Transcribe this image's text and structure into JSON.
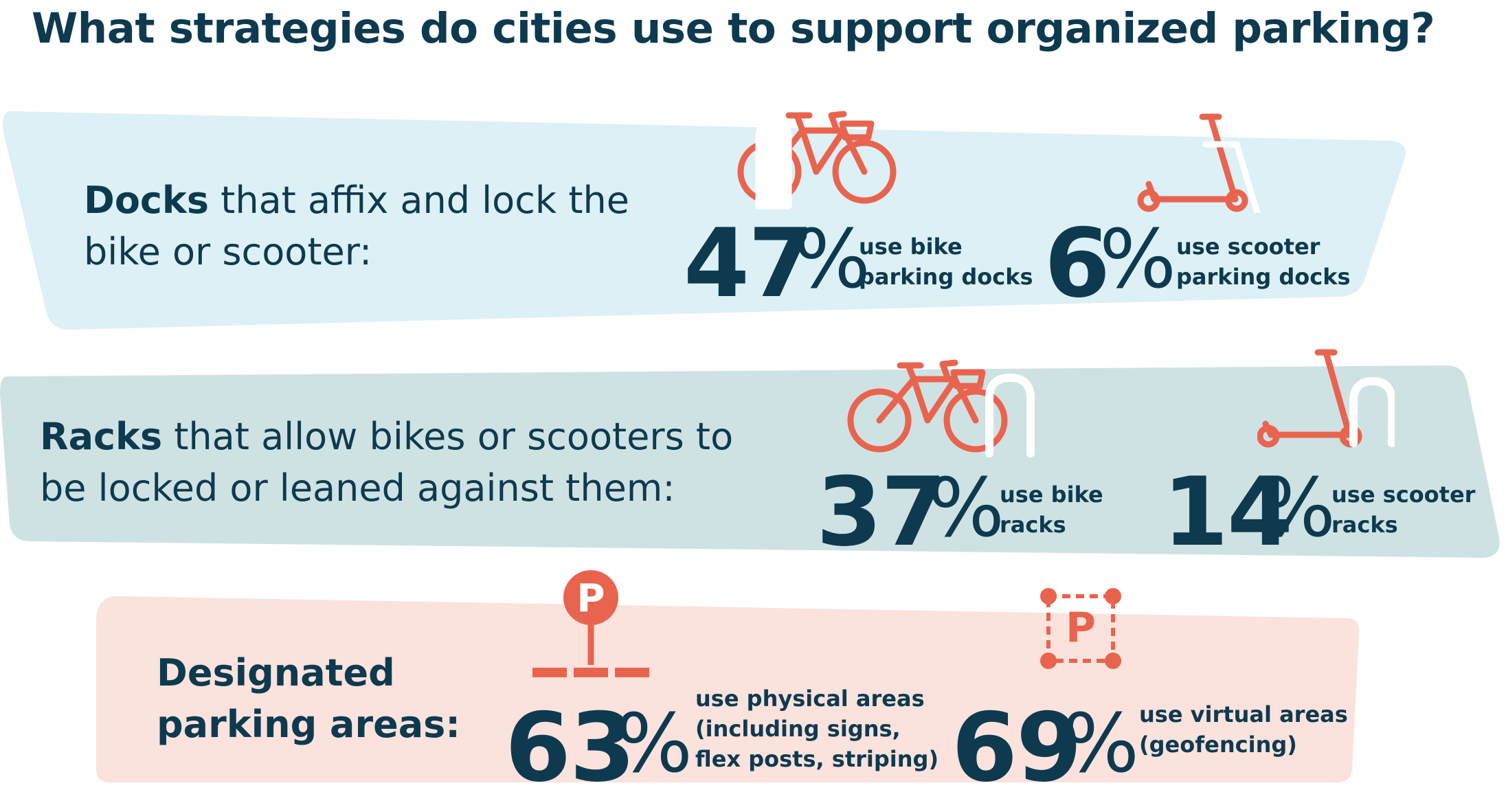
{
  "title": "What strategies do cities use to support organized parking?",
  "colors": {
    "navy": "#0e3a4f",
    "coral": "#e8644f",
    "docks_band": "#dcf0f6",
    "racks_band": "#cfe2e3",
    "areas_band": "#fbe2dd"
  },
  "rows": {
    "docks": {
      "label_bold": "Docks",
      "label_line1_rest": " that affix and lock the",
      "label_line2": "bike or scooter:",
      "stats": [
        {
          "value": "47",
          "unit": "%",
          "desc_line1": "use bike",
          "desc_line2": "parking docks",
          "icon": "bike-dock-icon"
        },
        {
          "value": "6",
          "unit": "%",
          "desc_line1": "use scooter",
          "desc_line2": "parking docks",
          "icon": "scooter-dock-icon"
        }
      ]
    },
    "racks": {
      "label_bold": "Racks",
      "label_line1_rest": " that allow bikes or scooters to",
      "label_line2": "be locked or leaned against them:",
      "stats": [
        {
          "value": "37",
          "unit": "%",
          "desc_line1": "use bike",
          "desc_line2": "racks",
          "icon": "bike-rack-icon"
        },
        {
          "value": "14",
          "unit": "%",
          "desc_line1": "use scooter",
          "desc_line2": "racks",
          "icon": "scooter-rack-icon"
        }
      ]
    },
    "areas": {
      "label_line1": "Designated",
      "label_line2": "parking areas:",
      "stats": [
        {
          "value": "63",
          "unit": "%",
          "desc_line1": "use physical areas",
          "desc_line2": "(including signs,",
          "desc_line3": "flex posts, striping)",
          "icon": "parking-pin-icon",
          "icon_letter": "P"
        },
        {
          "value": "69",
          "unit": "%",
          "desc_line1": "use virtual areas",
          "desc_line2": "(geofencing)",
          "icon": "geofence-parking-icon",
          "icon_letter": "P"
        }
      ]
    }
  }
}
